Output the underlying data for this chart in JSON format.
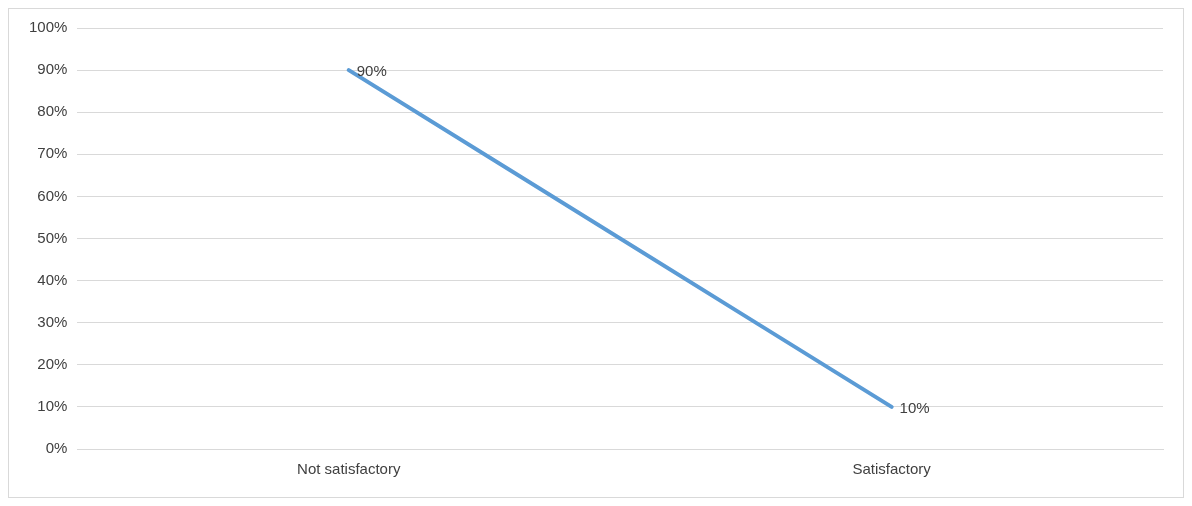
{
  "chart_data": {
    "type": "line",
    "categories": [
      "Not satisfactory",
      "Satisfactory"
    ],
    "series": [
      {
        "color": "#5b9bd5",
        "values": [
          90,
          10
        ],
        "value_labels": [
          "90%",
          "10%"
        ]
      }
    ],
    "ylim": [
      0,
      100
    ],
    "yticks": [
      {
        "value": 0,
        "label": "0%"
      },
      {
        "value": 10,
        "label": "10%"
      },
      {
        "value": 20,
        "label": "20%"
      },
      {
        "value": 30,
        "label": "30%"
      },
      {
        "value": 40,
        "label": "40%"
      },
      {
        "value": 50,
        "label": "50%"
      },
      {
        "value": 60,
        "label": "60%"
      },
      {
        "value": 70,
        "label": "70%"
      },
      {
        "value": 80,
        "label": "80%"
      },
      {
        "value": 90,
        "label": "90%"
      },
      {
        "value": 100,
        "label": "100%"
      }
    ],
    "grid": "y",
    "legend": false,
    "marker": "none",
    "line_style": "solid"
  }
}
